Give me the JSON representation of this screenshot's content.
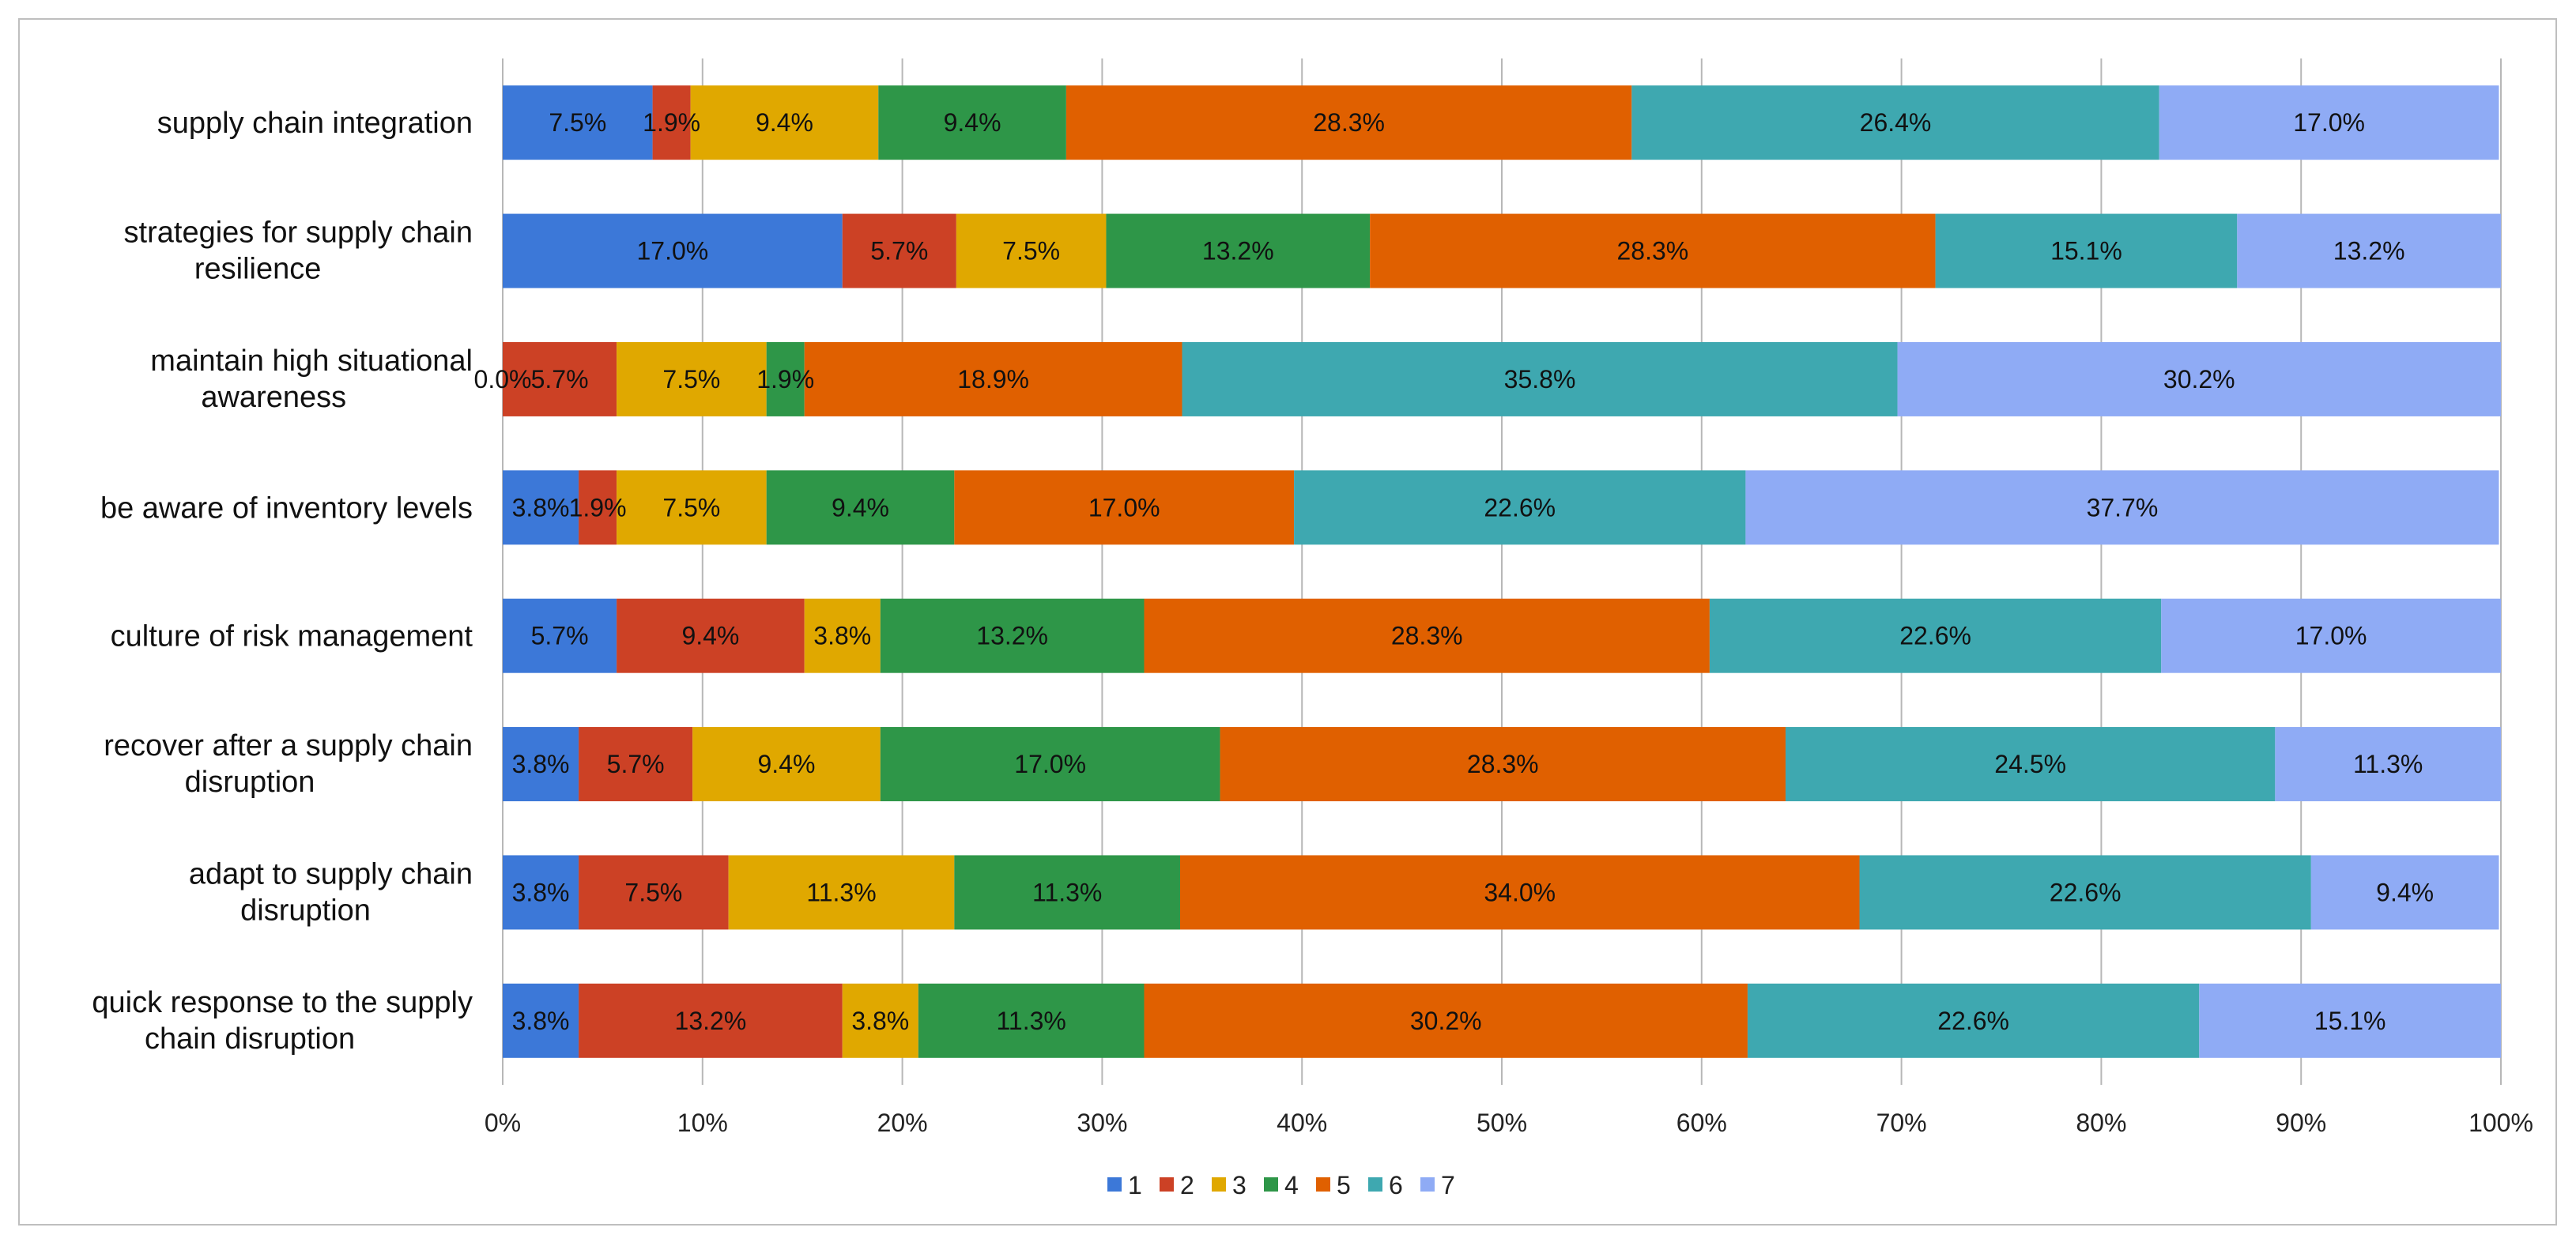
{
  "chart_data": {
    "type": "bar",
    "orientation": "horizontal",
    "stacked": "percent",
    "title": "",
    "xlabel": "",
    "ylabel": "",
    "xlim": [
      0,
      100
    ],
    "grid": true,
    "legend_position": "bottom",
    "x_ticks": [
      0,
      10,
      20,
      30,
      40,
      50,
      60,
      70,
      80,
      90,
      100
    ],
    "x_tick_labels": [
      "0%",
      "10%",
      "20%",
      "30%",
      "40%",
      "50%",
      "60%",
      "70%",
      "80%",
      "90%",
      "100%"
    ],
    "categories": [
      {
        "label": "supply chain integration",
        "lines": [
          "supply chain integration"
        ]
      },
      {
        "label": "strategies for supply chain resilience",
        "lines": [
          "strategies for supply chain",
          "resilience"
        ]
      },
      {
        "label": "maintain high situational awareness",
        "lines": [
          "maintain high situational",
          "awareness"
        ]
      },
      {
        "label": "be aware of inventory levels",
        "lines": [
          "be aware of inventory levels"
        ]
      },
      {
        "label": "culture of risk management",
        "lines": [
          "culture of risk management"
        ]
      },
      {
        "label": "recover after a supply chain disruption",
        "lines": [
          "recover after a supply chain",
          "disruption"
        ]
      },
      {
        "label": "adapt to supply chain disruption",
        "lines": [
          "adapt to supply chain",
          "disruption"
        ]
      },
      {
        "label": "quick response to the supply chain disruption",
        "lines": [
          "quick response to the supply",
          "chain disruption"
        ]
      }
    ],
    "series": [
      {
        "name": "1",
        "color": "#3c78d8",
        "values": [
          7.5,
          17.0,
          0.0,
          3.8,
          5.7,
          3.8,
          3.8,
          3.8
        ]
      },
      {
        "name": "2",
        "color": "#cc4125",
        "values": [
          1.9,
          5.7,
          5.7,
          1.9,
          9.4,
          5.7,
          7.5,
          13.2
        ]
      },
      {
        "name": "3",
        "color": "#e0a800",
        "values": [
          9.4,
          7.5,
          7.5,
          7.5,
          3.8,
          9.4,
          11.3,
          3.8
        ]
      },
      {
        "name": "4",
        "color": "#2e9648",
        "values": [
          9.4,
          13.2,
          1.9,
          9.4,
          13.2,
          17.0,
          11.3,
          11.3
        ]
      },
      {
        "name": "5",
        "color": "#e06000",
        "values": [
          28.3,
          28.3,
          18.9,
          17.0,
          28.3,
          28.3,
          34.0,
          30.2
        ]
      },
      {
        "name": "6",
        "color": "#3ea8b0",
        "values": [
          26.4,
          15.1,
          35.8,
          22.6,
          22.6,
          24.5,
          22.6,
          22.6
        ]
      },
      {
        "name": "7",
        "color": "#8fabf5",
        "values": [
          17.0,
          13.2,
          30.2,
          37.7,
          17.0,
          11.3,
          9.4,
          15.1
        ]
      }
    ],
    "data_labels": [
      [
        "7.5%",
        "1.9%",
        "9.4%",
        "9.4%",
        "28.3%",
        "26.4%",
        "17.0%"
      ],
      [
        "17.0%",
        "5.7%",
        "7.5%",
        "13.2%",
        "28.3%",
        "15.1%",
        "13.2%"
      ],
      [
        "0.0%",
        "5.7%",
        "7.5%",
        "1.9%",
        "18.9%",
        "35.8%",
        "30.2%"
      ],
      [
        "3.8%",
        "1.9%",
        "7.5%",
        "9.4%",
        "17.0%",
        "22.6%",
        "37.7%"
      ],
      [
        "5.7%",
        "9.4%",
        "3.8%",
        "13.2%",
        "28.3%",
        "22.6%",
        "17.0%"
      ],
      [
        "3.8%",
        "5.7%",
        "9.4%",
        "17.0%",
        "28.3%",
        "24.5%",
        "11.3%"
      ],
      [
        "3.8%",
        "7.5%",
        "11.3%",
        "11.3%",
        "34.0%",
        "22.6%",
        "9.4%"
      ],
      [
        "3.8%",
        "13.2%",
        "3.8%",
        "11.3%",
        "30.2%",
        "22.6%",
        "15.1%"
      ]
    ]
  }
}
